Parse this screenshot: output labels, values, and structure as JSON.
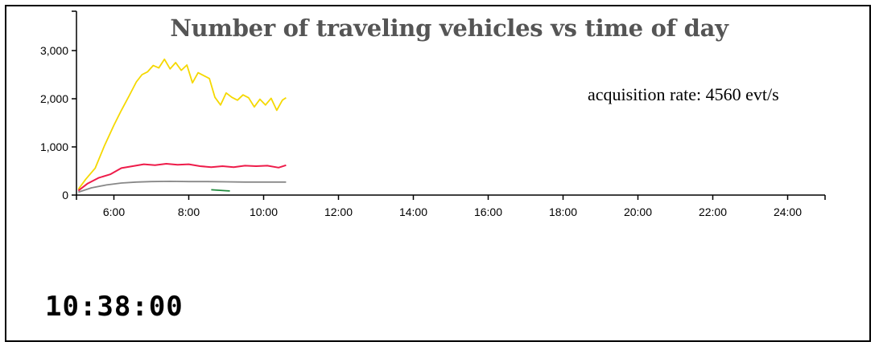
{
  "chart_data": {
    "type": "line",
    "title": "Number of traveling vehicles vs time of day",
    "annotation": "acquisition rate: 4560 evt/s",
    "xlim": [
      5,
      25
    ],
    "ylim": [
      0,
      3000
    ],
    "xticks": [
      6,
      8,
      10,
      12,
      14,
      16,
      18,
      20,
      22,
      24
    ],
    "xtick_labels": [
      "6:00",
      "8:00",
      "10:00",
      "12:00",
      "14:00",
      "16:00",
      "18:00",
      "20:00",
      "22:00",
      "24:00"
    ],
    "yticks": [
      0,
      1000,
      2000,
      3000
    ],
    "ytick_labels": [
      "0",
      "1,000",
      "2,000",
      "3,000"
    ],
    "grid": false,
    "series": [
      {
        "color": "#f5d800",
        "x": [
          5.05,
          5.25,
          5.5,
          5.75,
          6.0,
          6.2,
          6.4,
          6.6,
          6.75,
          6.9,
          7.05,
          7.2,
          7.35,
          7.5,
          7.65,
          7.8,
          7.95,
          8.1,
          8.25,
          8.4,
          8.55,
          8.7,
          8.85,
          9.0,
          9.15,
          9.3,
          9.45,
          9.6,
          9.75,
          9.9,
          10.05,
          10.2,
          10.35,
          10.5,
          10.6
        ],
        "values": [
          120,
          330,
          560,
          1030,
          1450,
          1760,
          2050,
          2350,
          2500,
          2560,
          2690,
          2640,
          2820,
          2620,
          2750,
          2590,
          2700,
          2330,
          2540,
          2480,
          2420,
          2030,
          1870,
          2120,
          2030,
          1970,
          2080,
          2020,
          1830,
          1990,
          1870,
          2010,
          1760,
          1970,
          2020
        ]
      },
      {
        "color": "#ee1c4a",
        "x": [
          5.05,
          5.3,
          5.6,
          5.9,
          6.2,
          6.5,
          6.8,
          7.1,
          7.4,
          7.7,
          8.0,
          8.3,
          8.6,
          8.9,
          9.2,
          9.5,
          9.8,
          10.1,
          10.4,
          10.6
        ],
        "values": [
          90,
          240,
          360,
          430,
          560,
          600,
          640,
          620,
          650,
          630,
          640,
          600,
          580,
          600,
          580,
          610,
          600,
          610,
          570,
          620
        ]
      },
      {
        "color": "#888888",
        "x": [
          5.05,
          5.4,
          5.8,
          6.2,
          6.6,
          7.0,
          7.5,
          8.0,
          8.5,
          9.0,
          9.5,
          10.0,
          10.6
        ],
        "values": [
          60,
          150,
          210,
          250,
          270,
          280,
          285,
          280,
          280,
          275,
          270,
          270,
          270
        ]
      },
      {
        "color": "#1f8a3c",
        "x": [
          8.6,
          8.8,
          9.0,
          9.1
        ],
        "values": [
          110,
          100,
          90,
          85
        ]
      }
    ]
  },
  "clock": "10:38:00"
}
